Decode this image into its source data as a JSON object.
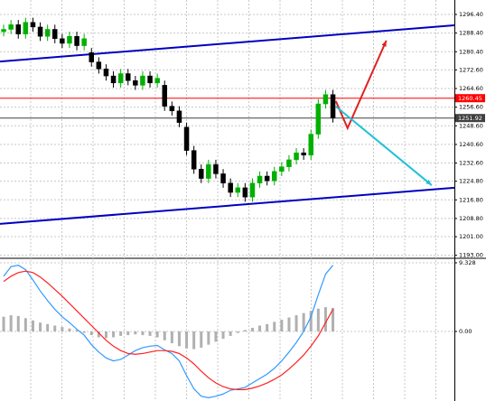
{
  "chart_data": [
    {
      "type": "candlestick",
      "xlim": [
        -0.5,
        61.6
      ],
      "ylim": [
        1192.1,
        1302.6
      ],
      "yticks": [
        {
          "value": 1296.4,
          "label": "1296.40"
        },
        {
          "value": 1288.4,
          "label": "1288.40"
        },
        {
          "value": 1280.4,
          "label": "1280.40"
        },
        {
          "value": 1272.6,
          "label": "1272.60"
        },
        {
          "value": 1264.6,
          "label": "1264.60"
        },
        {
          "value": 1256.6,
          "label": "1256.60"
        },
        {
          "value": 1248.6,
          "label": "1248.60"
        },
        {
          "value": 1240.6,
          "label": "1240.60"
        },
        {
          "value": 1232.6,
          "label": "1232.60"
        },
        {
          "value": 1224.8,
          "label": "1224.80"
        },
        {
          "value": 1216.8,
          "label": "1216.80"
        },
        {
          "value": 1208.8,
          "label": "1208.80"
        },
        {
          "value": 1201,
          "label": "1201.00"
        },
        {
          "value": 1193,
          "label": "1193.00"
        }
      ],
      "grid": true,
      "up_color": "#00b000",
      "down_color": "#000000",
      "open": [
        1289,
        1290,
        1292,
        1288,
        1293,
        1291,
        1287,
        1290,
        1286,
        1284,
        1287,
        1283,
        1280,
        1276,
        1273,
        1270,
        1267,
        1271,
        1268,
        1266,
        1270,
        1267,
        1266,
        1257,
        1255,
        1248,
        1238,
        1230,
        1226,
        1232,
        1228,
        1224,
        1220,
        1222,
        1218,
        1224,
        1227,
        1225,
        1229,
        1231,
        1234,
        1237,
        1236,
        1245,
        1258,
        1262
      ],
      "high": [
        1292,
        1294,
        1294,
        1295,
        1295,
        1293,
        1292,
        1292,
        1288,
        1289,
        1289,
        1288,
        1282,
        1278,
        1275,
        1272,
        1273,
        1273,
        1270,
        1272,
        1272,
        1271,
        1268,
        1259,
        1257,
        1250,
        1240,
        1232,
        1234,
        1234,
        1230,
        1226,
        1224,
        1224,
        1226,
        1229,
        1229,
        1231,
        1233,
        1236,
        1239,
        1239,
        1247,
        1260,
        1264,
        1264
      ],
      "low": [
        1287,
        1288,
        1286,
        1286,
        1289,
        1285,
        1285,
        1284,
        1282,
        1282,
        1281,
        1281,
        1274,
        1271,
        1268,
        1265,
        1265,
        1266,
        1264,
        1264,
        1265,
        1265,
        1255,
        1253,
        1248,
        1236,
        1228,
        1224,
        1224,
        1226,
        1222,
        1218,
        1218,
        1216,
        1216,
        1222,
        1223,
        1223,
        1227,
        1229,
        1232,
        1234,
        1234,
        1243,
        1256,
        1250
      ],
      "close": [
        1290,
        1292,
        1288,
        1293,
        1291,
        1287,
        1290,
        1286,
        1284,
        1287,
        1283,
        1286,
        1276,
        1273,
        1270,
        1267,
        1271,
        1268,
        1266,
        1270,
        1267,
        1269,
        1257,
        1255,
        1250,
        1238,
        1230,
        1226,
        1232,
        1228,
        1224,
        1220,
        1222,
        1218,
        1224,
        1227,
        1225,
        1229,
        1231,
        1234,
        1237,
        1236,
        1245,
        1258,
        1262,
        1252
      ],
      "levels": [
        {
          "value": 1260.45,
          "color": "#ff0000"
        },
        {
          "value": 1251.92,
          "color": "#404040"
        }
      ],
      "lines": [
        {
          "x": [
            -0.5,
            61.6
          ],
          "y": [
            1276.2,
            1291.75
          ],
          "color": "#0000c0"
        },
        {
          "x": [
            -0.5,
            61.6
          ],
          "y": [
            1206.5,
            1222.0
          ],
          "color": "#0000c0"
        }
      ],
      "arrows": [
        {
          "x": [
            45.4,
            47,
            52.3
          ],
          "y": [
            1259.2,
            1247.6,
            1285.2
          ],
          "color": "#e02020"
        },
        {
          "x": [
            45.4,
            58.5
          ],
          "y": [
            1256.9,
            1223.1
          ],
          "color": "#20c0d8"
        }
      ]
    },
    {
      "type": "macd",
      "xlim": [
        -0.5,
        61.6
      ],
      "ylim": [
        -9.45,
        9.82
      ],
      "yticks": [
        9.328,
        {
          "value": 0,
          "label": "0.00"
        }
      ],
      "series": [
        {
          "type": "bar",
          "color": "#b0b0b0",
          "values": [
            2.0,
            2.2,
            2.1,
            1.8,
            1.5,
            1.2,
            1.0,
            0.8,
            0.6,
            0.4,
            0.2,
            -0.2,
            -0.5,
            -0.8,
            -0.9,
            -0.8,
            -0.6,
            -0.5,
            -0.4,
            -0.5,
            -0.6,
            -0.8,
            -1.2,
            -1.6,
            -2.0,
            -2.3,
            -2.4,
            -2.2,
            -1.8,
            -1.4,
            -1.0,
            -0.6,
            -0.2,
            0.2,
            0.5,
            0.8,
            1.0,
            1.3,
            1.6,
            1.9,
            2.2,
            2.5,
            2.8,
            3.1,
            3.3,
            3.2
          ]
        },
        {
          "type": "line",
          "color": "#3399ff",
          "values": [
            7.5,
            8.8,
            9.0,
            8.4,
            7.0,
            5.5,
            4.2,
            3.0,
            2.0,
            1.2,
            0.3,
            -0.5,
            -1.8,
            -2.8,
            -3.6,
            -4.0,
            -3.8,
            -3.2,
            -2.6,
            -2.2,
            -2.0,
            -1.9,
            -2.5,
            -3.0,
            -4.0,
            -6.0,
            -7.8,
            -8.8,
            -9.0,
            -8.8,
            -8.5,
            -8.0,
            -7.8,
            -7.6,
            -7.0,
            -6.4,
            -5.8,
            -5.0,
            -4.0,
            -2.8,
            -1.5,
            0.0,
            2.0,
            5.0,
            7.8,
            9.0
          ]
        },
        {
          "type": "line",
          "color": "#ff2020",
          "values": [
            6.8,
            7.5,
            8.0,
            8.2,
            8.0,
            7.4,
            6.6,
            5.7,
            4.8,
            3.8,
            2.8,
            1.8,
            0.8,
            -0.2,
            -1.2,
            -2.0,
            -2.6,
            -3.0,
            -3.1,
            -3.0,
            -2.8,
            -2.6,
            -2.6,
            -2.7,
            -3.0,
            -3.6,
            -4.4,
            -5.4,
            -6.3,
            -7.0,
            -7.5,
            -7.8,
            -7.9,
            -7.9,
            -7.7,
            -7.4,
            -7.0,
            -6.5,
            -5.9,
            -5.1,
            -4.2,
            -3.2,
            -2.0,
            -0.6,
            1.2,
            3.0
          ]
        }
      ]
    }
  ]
}
